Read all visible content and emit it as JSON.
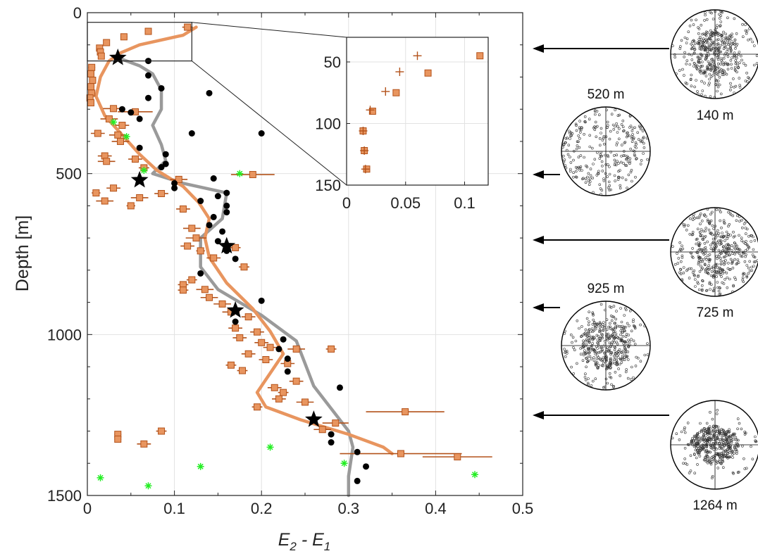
{
  "chart_data": [
    {
      "type": "scatter",
      "xlabel": "E2 - E1",
      "ylabel": "Depth [m]",
      "xlim": [
        0,
        0.5
      ],
      "ylim": [
        1500,
        0
      ],
      "xticks": [
        "0",
        "0.1",
        "0.2",
        "0.3",
        "0.4",
        "0.5"
      ],
      "yticks": [
        "0",
        "500",
        "1000",
        "1500"
      ],
      "grid": true,
      "colors": {
        "squares": "#e8955f",
        "squares_edge": "#b3521a",
        "error_bars": "#b3521a",
        "orange_curve": "#e8955f",
        "gray_curve": "#9a9a9a",
        "dots": "#000000",
        "green": "#22ee22",
        "stars": "#000000"
      },
      "series": [
        {
          "marker": "square-with-error-bars",
          "points": [
            [
              0.115,
              45,
              0.006
            ],
            [
              0.07,
              58,
              0.004
            ],
            [
              0.042,
              75,
              0.004
            ],
            [
              0.022,
              93,
              0.003
            ],
            [
              0.014,
              110,
              0.003
            ],
            [
              0.015,
              122,
              0.003
            ],
            [
              0.016,
              135,
              0.003
            ],
            [
              0.005,
              170,
              0.004
            ],
            [
              0.004,
              190,
              0.004
            ],
            [
              0.006,
              210,
              0.004
            ],
            [
              0.004,
              230,
              0.004
            ],
            [
              0.005,
              250,
              0.003
            ],
            [
              0.003,
              265,
              0.003
            ],
            [
              0.004,
              280,
              0.003
            ],
            [
              0.03,
              298,
              0.012
            ],
            [
              0.055,
              308,
              0.02
            ],
            [
              0.025,
              330,
              0.01
            ],
            [
              0.04,
              350,
              0.008
            ],
            [
              0.012,
              375,
              0.008
            ],
            [
              0.035,
              380,
              0.01
            ],
            [
              0.038,
              400,
              0.01
            ],
            [
              0.02,
              445,
              0.008
            ],
            [
              0.022,
              462,
              0.01
            ],
            [
              0.055,
              455,
              0.008
            ],
            [
              0.065,
              482,
              0.006
            ],
            [
              0.19,
              503,
              0.025
            ],
            [
              0.105,
              518,
              0.01
            ],
            [
              0.03,
              545,
              0.008
            ],
            [
              0.01,
              560,
              0.005
            ],
            [
              0.085,
              562,
              0.008
            ],
            [
              0.06,
              575,
              0.01
            ],
            [
              0.02,
              585,
              0.01
            ],
            [
              0.05,
              600,
              0.005
            ],
            [
              0.11,
              610,
              0.008
            ],
            [
              0.12,
              670,
              0.01
            ],
            [
              0.125,
              700,
              0.012
            ],
            [
              0.115,
              725,
              0.008
            ],
            [
              0.17,
              730,
              0.006
            ],
            [
              0.13,
              740,
              0.005
            ],
            [
              0.145,
              762,
              0.008
            ],
            [
              0.18,
              790,
              0.006
            ],
            [
              0.12,
              830,
              0.006
            ],
            [
              0.11,
              845,
              0.006
            ],
            [
              0.11,
              862,
              0.006
            ],
            [
              0.135,
              860,
              0.01
            ],
            [
              0.14,
              885,
              0.01
            ],
            [
              0.155,
              905,
              0.01
            ],
            [
              0.165,
              930,
              0.01
            ],
            [
              0.185,
              945,
              0.008
            ],
            [
              0.17,
              980,
              0.008
            ],
            [
              0.195,
              992,
              0.008
            ],
            [
              0.175,
              1010,
              0.008
            ],
            [
              0.2,
              1025,
              0.008
            ],
            [
              0.21,
              1040,
              0.008
            ],
            [
              0.24,
              1045,
              0.01
            ],
            [
              0.28,
              1045,
              0.006
            ],
            [
              0.185,
              1060,
              0.008
            ],
            [
              0.205,
              1078,
              0.008
            ],
            [
              0.23,
              1090,
              0.008
            ],
            [
              0.165,
              1095,
              0.006
            ],
            [
              0.178,
              1112,
              0.006
            ],
            [
              0.24,
              1145,
              0.008
            ],
            [
              0.215,
              1165,
              0.008
            ],
            [
              0.225,
              1180,
              0.006
            ],
            [
              0.22,
              1200,
              0.008
            ],
            [
              0.195,
              1225,
              0.006
            ],
            [
              0.25,
              1210,
              0.01
            ],
            [
              0.365,
              1240,
              0.045
            ],
            [
              0.285,
              1275,
              0.015
            ],
            [
              0.27,
              1295,
              0.01
            ],
            [
              0.085,
              1300,
              0.006
            ],
            [
              0.035,
              1310,
              0.004
            ],
            [
              0.035,
              1325,
              0.004
            ],
            [
              0.065,
              1340,
              0.008
            ],
            [
              0.36,
              1370,
              0.07
            ],
            [
              0.425,
              1380,
              0.04
            ]
          ]
        },
        {
          "marker": "dot",
          "points": [
            [
              0.07,
              150
            ],
            [
              0.07,
              195
            ],
            [
              0.085,
              235
            ],
            [
              0.07,
              265
            ],
            [
              0.14,
              250
            ],
            [
              0.04,
              300
            ],
            [
              0.06,
              330
            ],
            [
              0.05,
              310
            ],
            [
              0.2,
              375
            ],
            [
              0.06,
              420
            ],
            [
              0.12,
              375
            ],
            [
              0.09,
              440
            ],
            [
              0.09,
              470
            ],
            [
              0.085,
              480
            ],
            [
              0.145,
              515
            ],
            [
              0.1,
              530
            ],
            [
              0.1,
              545
            ],
            [
              0.16,
              560
            ],
            [
              0.15,
              570
            ],
            [
              0.13,
              585
            ],
            [
              0.16,
              600
            ],
            [
              0.16,
              620
            ],
            [
              0.145,
              635
            ],
            [
              0.14,
              660
            ],
            [
              0.155,
              680
            ],
            [
              0.15,
              710
            ],
            [
              0.16,
              740
            ],
            [
              0.17,
              765
            ],
            [
              0.13,
              810
            ],
            [
              0.2,
              895
            ],
            [
              0.17,
              960
            ],
            [
              0.225,
              1015
            ],
            [
              0.22,
              1045
            ],
            [
              0.23,
              1075
            ],
            [
              0.23,
              1115
            ],
            [
              0.29,
              1165
            ],
            [
              0.26,
              1265
            ],
            [
              0.28,
              1310
            ],
            [
              0.28,
              1335
            ],
            [
              0.31,
              1365
            ],
            [
              0.32,
              1410
            ],
            [
              0.31,
              1455
            ]
          ]
        },
        {
          "marker": "green-asterisk",
          "points": [
            [
              0.03,
              340
            ],
            [
              0.045,
              385
            ],
            [
              0.065,
              490
            ],
            [
              0.175,
              500
            ],
            [
              0.21,
              1350
            ],
            [
              0.13,
              1410
            ],
            [
              0.295,
              1400
            ],
            [
              0.445,
              1435
            ],
            [
              0.015,
              1445
            ],
            [
              0.07,
              1470
            ]
          ]
        },
        {
          "marker": "star",
          "points": [
            [
              0.035,
              140
            ],
            [
              0.06,
              520
            ],
            [
              0.16,
              725
            ],
            [
              0.17,
              925
            ],
            [
              0.26,
              1264
            ]
          ]
        },
        {
          "marker": "line",
          "name": "orange curve",
          "points": [
            [
              0.125,
              45
            ],
            [
              0.11,
              70
            ],
            [
              0.06,
              100
            ],
            [
              0.038,
              125
            ],
            [
              0.025,
              150
            ],
            [
              0.015,
              200
            ],
            [
              0.01,
              260
            ],
            [
              0.02,
              320
            ],
            [
              0.04,
              380
            ],
            [
              0.06,
              440
            ],
            [
              0.08,
              490
            ],
            [
              0.11,
              540
            ],
            [
              0.128,
              590
            ],
            [
              0.14,
              640
            ],
            [
              0.135,
              700
            ],
            [
              0.14,
              760
            ],
            [
              0.16,
              840
            ],
            [
              0.19,
              920
            ],
            [
              0.21,
              990
            ],
            [
              0.225,
              1060
            ],
            [
              0.21,
              1120
            ],
            [
              0.195,
              1180
            ],
            [
              0.205,
              1225
            ],
            [
              0.245,
              1265
            ],
            [
              0.3,
              1310
            ],
            [
              0.34,
              1350
            ],
            [
              0.35,
              1370
            ]
          ]
        },
        {
          "marker": "line",
          "name": "gray curve",
          "points": [
            [
              0.035,
              140
            ],
            [
              0.06,
              165
            ],
            [
              0.075,
              190
            ],
            [
              0.085,
              240
            ],
            [
              0.085,
              300
            ],
            [
              0.075,
              350
            ],
            [
              0.085,
              410
            ],
            [
              0.09,
              460
            ],
            [
              0.075,
              500
            ],
            [
              0.11,
              530
            ],
            [
              0.16,
              560
            ],
            [
              0.155,
              640
            ],
            [
              0.13,
              700
            ],
            [
              0.13,
              790
            ],
            [
              0.15,
              860
            ],
            [
              0.2,
              940
            ],
            [
              0.24,
              1020
            ],
            [
              0.25,
              1090
            ],
            [
              0.26,
              1160
            ],
            [
              0.28,
              1230
            ],
            [
              0.3,
              1300
            ],
            [
              0.305,
              1350
            ],
            [
              0.3,
              1440
            ],
            [
              0.3,
              1500
            ]
          ]
        }
      ]
    },
    {
      "type": "scatter",
      "inset": true,
      "xlim": [
        0,
        0.12
      ],
      "ylim": [
        150,
        30
      ],
      "xticks": [
        "0",
        "0.05",
        "0.1"
      ],
      "yticks": [
        "50",
        "100",
        "150"
      ],
      "grid": true,
      "series": [
        {
          "marker": "square",
          "points": [
            [
              0.113,
              45
            ],
            [
              0.069,
              59
            ],
            [
              0.042,
              75
            ],
            [
              0.022,
              90
            ],
            [
              0.014,
              106
            ],
            [
              0.015,
              122
            ],
            [
              0.017,
              137
            ]
          ]
        },
        {
          "marker": "plus",
          "points": [
            [
              0.06,
              45
            ],
            [
              0.045,
              58
            ],
            [
              0.033,
              74
            ],
            [
              0.02,
              89
            ],
            [
              0.014,
              106
            ],
            [
              0.015,
              122
            ],
            [
              0.016,
              137
            ]
          ]
        }
      ]
    }
  ],
  "stereonets": [
    {
      "id": "s140",
      "label": "140 m"
    },
    {
      "id": "s520",
      "label": "520 m"
    },
    {
      "id": "s725",
      "label": "725 m"
    },
    {
      "id": "s925",
      "label": "925 m"
    },
    {
      "id": "s1264",
      "label": "1264 m"
    }
  ],
  "labels": {
    "ylabel": "Depth [m]",
    "xlabel_e2": "E",
    "xlabel_sub2": "2",
    "xlabel_mid": " - E",
    "xlabel_sub1": "1"
  }
}
